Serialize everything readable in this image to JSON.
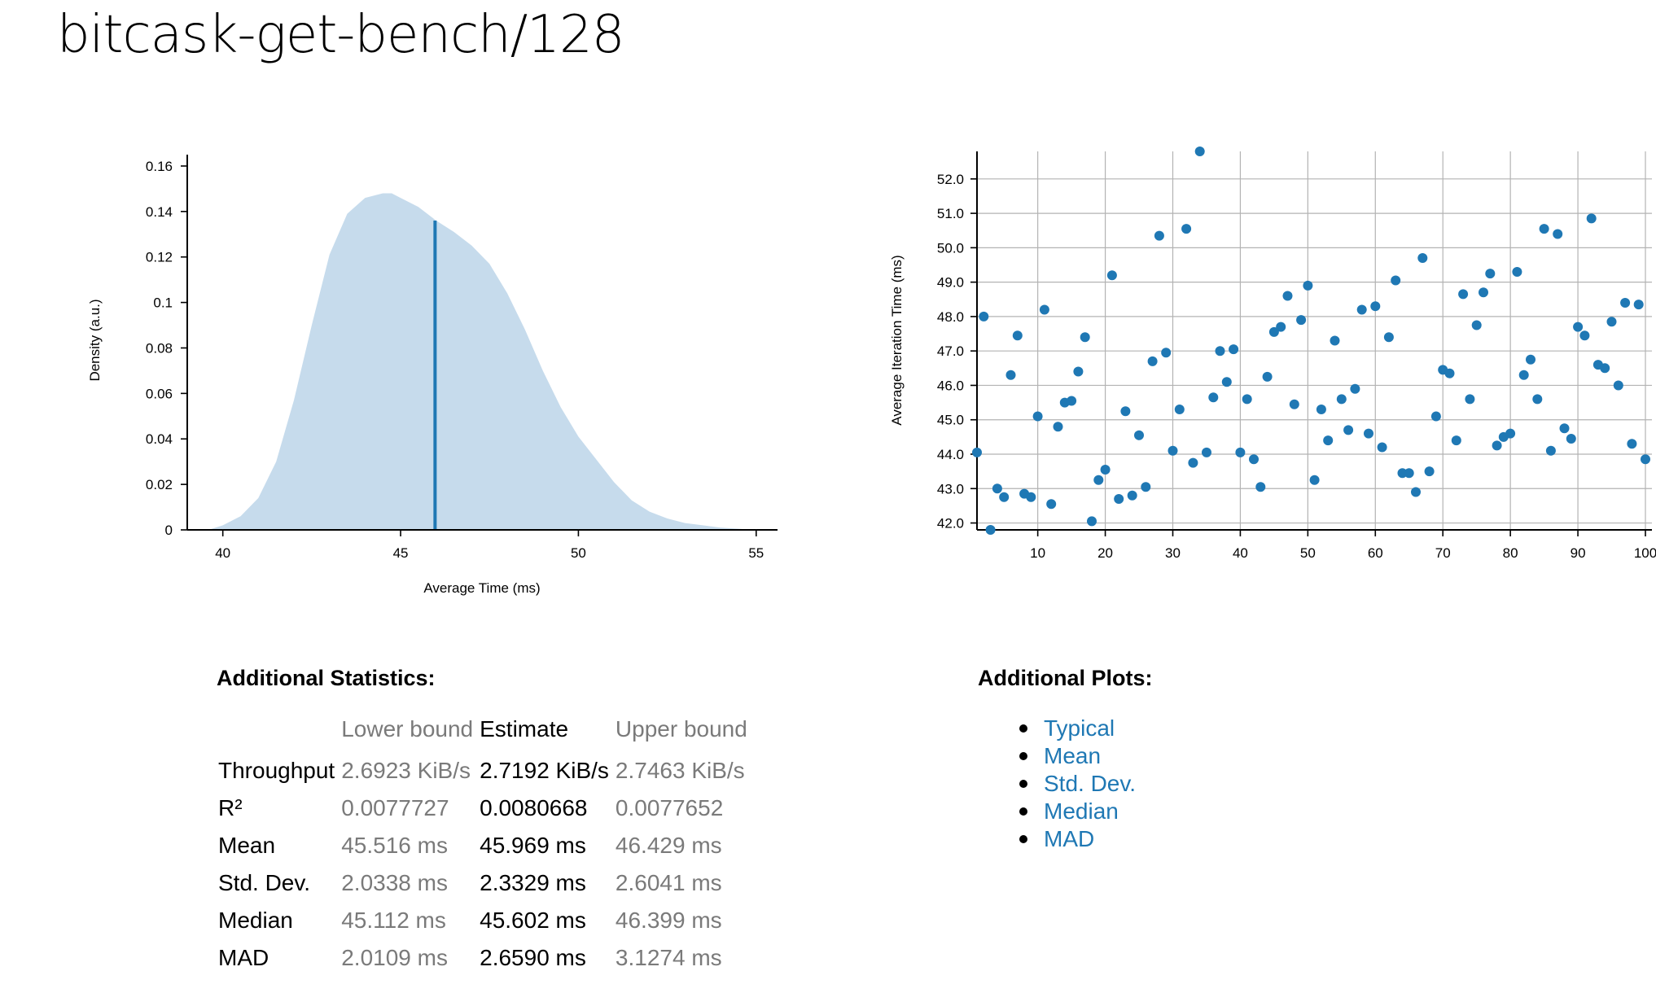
{
  "page_title": "bitcask-get-bench/128",
  "stats": {
    "title": "Additional Statistics:",
    "headers": [
      "",
      "Lower bound",
      "Estimate",
      "Upper bound"
    ],
    "rows": [
      {
        "label": "Throughput",
        "lower": "2.6923 KiB/s",
        "estimate": "2.7192 KiB/s",
        "upper": "2.7463 KiB/s"
      },
      {
        "label": "R²",
        "lower": "0.0077727",
        "estimate": "0.0080668",
        "upper": "0.0077652"
      },
      {
        "label": "Mean",
        "lower": "45.516 ms",
        "estimate": "45.969 ms",
        "upper": "46.429 ms"
      },
      {
        "label": "Std. Dev.",
        "lower": "2.0338 ms",
        "estimate": "2.3329 ms",
        "upper": "2.6041 ms"
      },
      {
        "label": "Median",
        "lower": "45.112 ms",
        "estimate": "45.602 ms",
        "upper": "46.399 ms"
      },
      {
        "label": "MAD",
        "lower": "2.0109 ms",
        "estimate": "2.6590 ms",
        "upper": "3.1274 ms"
      }
    ]
  },
  "plots": {
    "title": "Additional Plots:",
    "links": [
      "Typical",
      "Mean",
      "Std. Dev.",
      "Median",
      "MAD"
    ]
  },
  "colors": {
    "density_fill": "#c6dbec",
    "mean_line": "#1f78b4",
    "points": "#1f78b4",
    "link": "#1f78b4"
  },
  "chart_data": [
    {
      "type": "area",
      "xlabel": "Average Time (ms)",
      "ylabel": "Density (a.u.)",
      "xlim": [
        39.0,
        55.6
      ],
      "ylim": [
        0,
        0.165
      ],
      "x_ticks": [
        40,
        45,
        50,
        55
      ],
      "y_ticks": [
        0,
        0.02,
        0.04,
        0.06,
        0.08,
        0.1,
        0.12,
        0.14,
        0.16
      ],
      "y_tick_labels": [
        "0",
        "0.02",
        "0.04",
        "0.06",
        "0.08",
        "0.1",
        "0.12",
        "0.14",
        "0.16"
      ],
      "x": [
        39.6,
        40.0,
        40.5,
        41.0,
        41.5,
        42.0,
        42.5,
        43.0,
        43.5,
        44.0,
        44.5,
        44.75,
        45.0,
        45.5,
        46.0,
        46.5,
        47.0,
        47.5,
        48.0,
        48.5,
        49.0,
        49.5,
        50.0,
        50.5,
        51.0,
        51.5,
        52.0,
        52.5,
        53.0,
        53.5,
        54.0,
        54.5,
        54.9
      ],
      "y": [
        0.0,
        0.002,
        0.006,
        0.014,
        0.03,
        0.057,
        0.09,
        0.121,
        0.139,
        0.146,
        0.148,
        0.148,
        0.146,
        0.142,
        0.136,
        0.131,
        0.125,
        0.117,
        0.104,
        0.088,
        0.07,
        0.054,
        0.041,
        0.031,
        0.021,
        0.013,
        0.008,
        0.005,
        0.003,
        0.002,
        0.001,
        0.0005,
        0.0
      ],
      "mean_marker": {
        "x": 45.969,
        "y": 0.136
      }
    },
    {
      "type": "scatter",
      "xlabel": "",
      "ylabel": "Average Iteration Time (ms)",
      "xlim": [
        1,
        100
      ],
      "ylim": [
        41.8,
        52.8
      ],
      "x_ticks": [
        10,
        20,
        30,
        40,
        50,
        60,
        70,
        80,
        90,
        100
      ],
      "y_ticks": [
        42.0,
        43.0,
        44.0,
        45.0,
        46.0,
        47.0,
        48.0,
        49.0,
        50.0,
        51.0,
        52.0
      ],
      "y_tick_labels": [
        "42.0",
        "43.0",
        "44.0",
        "45.0",
        "46.0",
        "47.0",
        "48.0",
        "49.0",
        "50.0",
        "51.0",
        "52.0"
      ],
      "x": [
        1,
        2,
        3,
        4,
        5,
        6,
        7,
        8,
        9,
        10,
        11,
        12,
        13,
        14,
        15,
        16,
        17,
        18,
        19,
        20,
        21,
        22,
        23,
        24,
        25,
        26,
        27,
        28,
        29,
        30,
        31,
        32,
        33,
        34,
        35,
        36,
        37,
        38,
        39,
        40,
        41,
        42,
        43,
        44,
        45,
        46,
        47,
        48,
        49,
        50,
        51,
        52,
        53,
        54,
        55,
        56,
        57,
        58,
        59,
        60,
        61,
        62,
        63,
        64,
        65,
        66,
        67,
        68,
        69,
        70,
        71,
        72,
        73,
        74,
        75,
        76,
        77,
        78,
        79,
        80,
        81,
        82,
        83,
        84,
        85,
        86,
        87,
        88,
        89,
        90,
        91,
        92,
        93,
        94,
        95,
        96,
        97,
        98,
        99,
        100
      ],
      "y": [
        44.05,
        48.0,
        41.8,
        43.0,
        42.75,
        46.3,
        47.45,
        42.85,
        42.75,
        45.1,
        48.2,
        42.55,
        44.8,
        45.5,
        45.55,
        46.4,
        47.4,
        42.05,
        43.25,
        43.55,
        49.2,
        42.7,
        45.25,
        42.8,
        44.55,
        43.05,
        46.7,
        50.35,
        46.95,
        44.1,
        45.3,
        50.55,
        43.75,
        52.8,
        44.05,
        45.65,
        47.0,
        46.1,
        47.05,
        44.05,
        45.6,
        43.85,
        43.05,
        46.25,
        47.55,
        47.7,
        48.6,
        45.45,
        47.9,
        48.9,
        43.25,
        45.3,
        44.4,
        47.3,
        45.6,
        44.7,
        45.9,
        48.2,
        44.6,
        48.3,
        44.2,
        47.4,
        49.05,
        43.45,
        43.45,
        42.9,
        49.7,
        43.5,
        45.1,
        46.45,
        46.35,
        44.4,
        48.65,
        45.6,
        47.75,
        48.7,
        49.25,
        44.25,
        44.5,
        44.6,
        49.3,
        46.3,
        46.75,
        45.6,
        50.55,
        44.1,
        50.4,
        44.75,
        44.45,
        47.7,
        47.45,
        50.85,
        46.6,
        46.5,
        47.85,
        46.0,
        48.4,
        44.3,
        48.35,
        43.85
      ]
    }
  ]
}
